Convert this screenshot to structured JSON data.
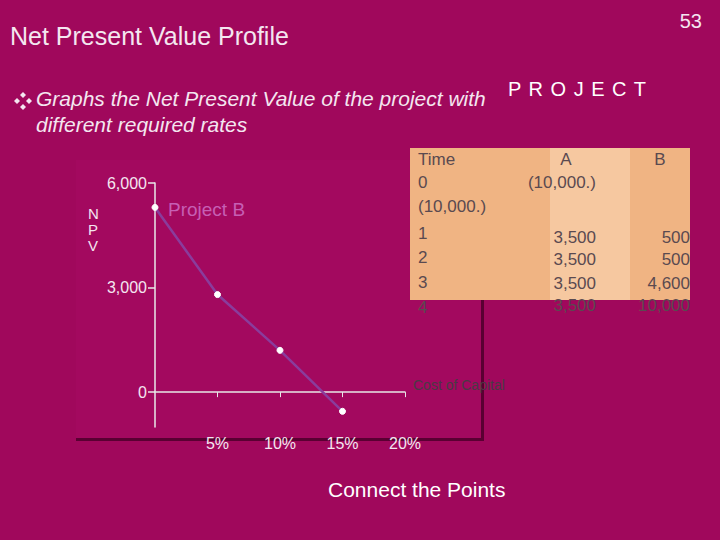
{
  "page_number": 53,
  "title": "Net Present Value Profile",
  "bullet": [
    "Graphs the Net Present Value of the project with",
    "different required rates"
  ],
  "table": {
    "heading": "P R O J E C T",
    "left_column": [
      "Time",
      "0",
      "(10,000.)",
      "1",
      "2",
      "3",
      "4"
    ],
    "columns": [
      {
        "name": "A",
        "cells": [
          "(10,000.)",
          "3,500",
          "3,500",
          "3,500",
          "3,500"
        ]
      },
      {
        "name": "B",
        "cells": [
          null,
          "500",
          "500",
          "4,600",
          "10,000"
        ]
      }
    ]
  },
  "note": "Connect the Points",
  "chart_data": {
    "type": "line",
    "y_label": "NPV",
    "x_label": "Cost of Capital",
    "x": [
      0,
      5,
      10,
      15
    ],
    "xlim": [
      0,
      20
    ],
    "xticks": [
      {
        "value": 5,
        "label": "5%"
      },
      {
        "value": 10,
        "label": "10%"
      },
      {
        "value": 15,
        "label": "15%"
      },
      {
        "value": 20,
        "label": "20%"
      }
    ],
    "ylim": [
      -1000,
      6000
    ],
    "yticks": [
      0,
      {
        "value": 3000,
        "label": "3,000"
      },
      {
        "value": 6000,
        "label": "6,000"
      }
    ],
    "grid": false,
    "series": [
      {
        "name": "Project B",
        "color": "#8a3c9c",
        "marker": "circle",
        "values": [
          5300,
          2800,
          1200,
          -550
        ]
      }
    ]
  }
}
